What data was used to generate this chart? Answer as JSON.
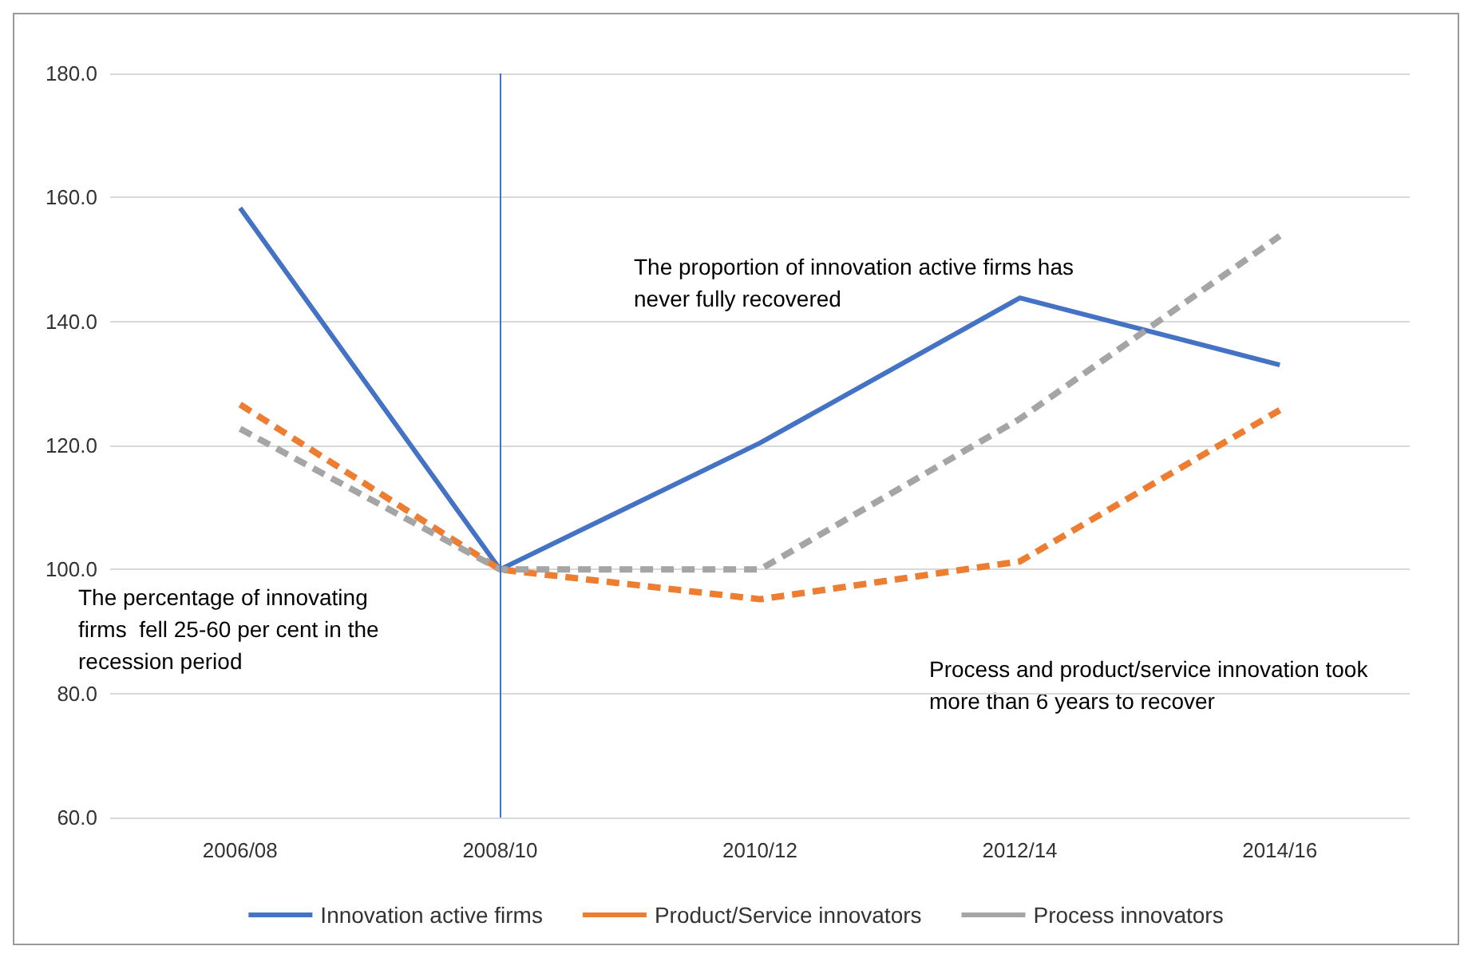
{
  "chart_data": {
    "type": "line",
    "categories": [
      "2006/08",
      "2008/10",
      "2010/12",
      "2012/14",
      "2014/16"
    ],
    "series": [
      {
        "name": "Innovation active firms",
        "color": "#4472c4",
        "line_style": "solid",
        "values": [
          158.3,
          100,
          120.4,
          143.8,
          133.0
        ]
      },
      {
        "name": "Product/Service innovators",
        "color": "#ed7d31",
        "line_style": "dashed",
        "values": [
          126.6,
          100,
          95.2,
          101.3,
          125.7
        ]
      },
      {
        "name": "Process innovators",
        "color": "#a5a5a5",
        "line_style": "dashed",
        "values": [
          122.7,
          100,
          100,
          124.3,
          153.8
        ]
      }
    ],
    "ylim": [
      60,
      180
    ],
    "yticks": [
      {
        "value": 60,
        "label": "60.0"
      },
      {
        "value": 80,
        "label": "80.0"
      },
      {
        "value": 100,
        "label": "100.0"
      },
      {
        "value": 120,
        "label": "120.0"
      },
      {
        "value": 140,
        "label": "140.0"
      },
      {
        "value": 160,
        "label": "160.0"
      },
      {
        "value": 180,
        "label": "180.0"
      }
    ],
    "ref_lines": [
      {
        "axis": "x",
        "value": "2008/10",
        "color": "#4472c4"
      }
    ],
    "annotations": [
      "The proportion of innovation active firms has never fully recovered",
      "The percentage of innovating firms  fell 25-60 per cent in the recession period",
      "Process and product/service innovation took more than 6 years to recover"
    ],
    "grid": "y",
    "legend": "bottom",
    "marker": "none"
  }
}
